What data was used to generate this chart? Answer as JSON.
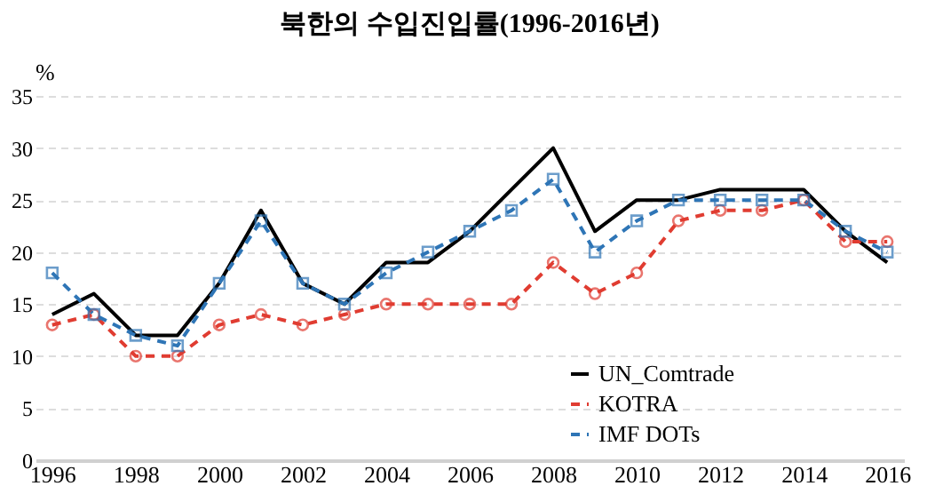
{
  "chart_data": {
    "type": "line",
    "title": "북한의 수입진입률(1996-2016년)",
    "ylabel": "%",
    "x": [
      1996,
      1997,
      1998,
      1999,
      2000,
      2001,
      2002,
      2003,
      2004,
      2005,
      2006,
      2007,
      2008,
      2009,
      2010,
      2011,
      2012,
      2013,
      2014,
      2015,
      2016
    ],
    "xlim": [
      1995.6,
      2016.4
    ],
    "xticks": [
      1996,
      1998,
      2000,
      2002,
      2004,
      2006,
      2008,
      2010,
      2012,
      2014,
      2016
    ],
    "ylim": [
      0,
      35
    ],
    "yticks": [
      0,
      5,
      10,
      15,
      20,
      25,
      30,
      35
    ],
    "grid": "y",
    "legend": "bottom right",
    "series": [
      {
        "name": "UN_Comtrade",
        "color": "#000000",
        "line_style": "solid",
        "marker": "none",
        "values": [
          14,
          16,
          12,
          12,
          17,
          24,
          17,
          15,
          19,
          19,
          22,
          26,
          30,
          22,
          25,
          25,
          26,
          26,
          26,
          22,
          19
        ]
      },
      {
        "name": "KOTRA",
        "color": "#e03c31",
        "line_style": "dashed",
        "marker": "circle",
        "values": [
          13,
          14,
          10,
          10,
          13,
          14,
          13,
          14,
          15,
          15,
          15,
          15,
          19,
          16,
          18,
          23,
          24,
          24,
          25,
          21,
          21
        ]
      },
      {
        "name": "IMF DOTs",
        "color": "#2e75b6",
        "line_style": "dashed",
        "marker": "square",
        "values": [
          18,
          14,
          12,
          11,
          17,
          23,
          17,
          15,
          18,
          20,
          22,
          24,
          27,
          20,
          23,
          25,
          25,
          25,
          25,
          22,
          20
        ]
      }
    ]
  }
}
